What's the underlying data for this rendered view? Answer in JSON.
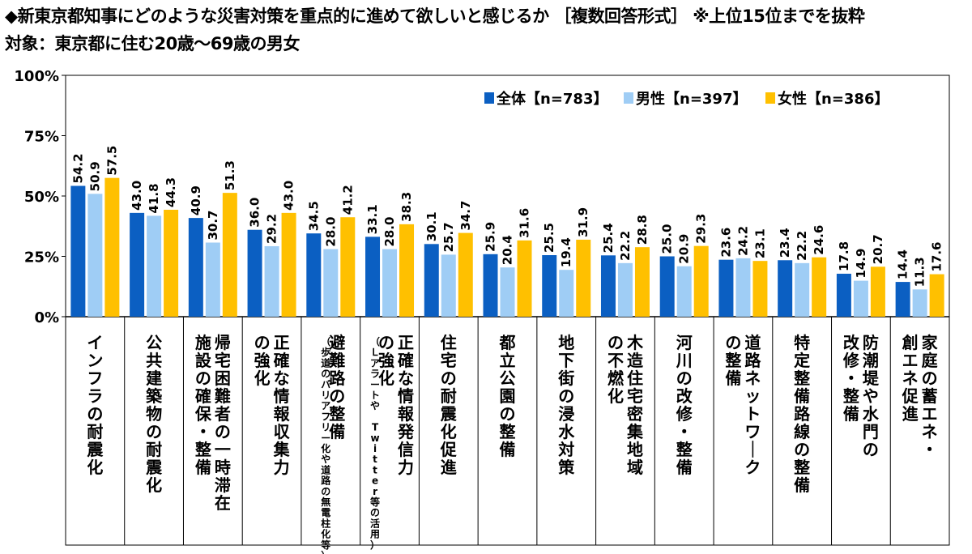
{
  "chart_data": {
    "type": "bar",
    "title": "◆新東京都知事にどのような災害対策を重点的に進めて欲しいと感じるか ［複数回答形式］ ※上位15位までを抜粋",
    "subtitle": "対象：東京都に住む20歳～69歳の男女",
    "ylim": [
      0,
      100
    ],
    "y_ticks": [
      "100%",
      "75%",
      "50%",
      "25%",
      "0%"
    ],
    "legend_position": "top-right",
    "categories": [
      "インフラの耐震化",
      "公共建築物の耐震化",
      "帰宅困難者の一時滞在施設の確保・整備",
      "正確な情報収集力の強化",
      "避難路の整備",
      "正確な情報発信力の強化",
      "住宅の耐震化促進",
      "都立公園の整備",
      "地下街の浸水対策",
      "木造住宅密集地域の不燃化",
      "河川の改修・整備",
      "道路ネットワークの整備",
      "特定整備路線の整備",
      "防潮堤や水門の改修・整備",
      "家庭の蓄エネ・創エネ促進"
    ],
    "category_columns": [
      [
        "インフラの耐震化"
      ],
      [
        "公共建築物の耐震化"
      ],
      [
        "帰宅困難者の一時滞在",
        "施設の確保・整備"
      ],
      [
        "正確な情報収集力",
        "の強化"
      ],
      [
        "避難路の整備"
      ],
      [
        "正確な情報発信力",
        "の強化"
      ],
      [
        "住宅の耐震化促進"
      ],
      [
        "都立公園の整備"
      ],
      [
        "地下街の浸水対策"
      ],
      [
        "木造住宅密集地域",
        "の不燃化"
      ],
      [
        "河川の改修・整備"
      ],
      [
        "道路ネットワーク",
        "の整備"
      ],
      [
        "特定整備路線の整備"
      ],
      [
        "防潮堤や水門の",
        "改修・整備"
      ],
      [
        "家庭の蓄エネ・",
        "創エネ促進"
      ]
    ],
    "category_notes": [
      "",
      "",
      "",
      "",
      "（歩道のバリアフリー化や道路の無電柱化等）",
      "（Ｌアラートや Twitter等の活用）",
      "",
      "",
      "",
      "",
      "",
      "",
      "",
      "",
      ""
    ],
    "series": [
      {
        "name": "全体【n=783】",
        "color": "#0b5fc2",
        "values": [
          54.2,
          43.0,
          40.9,
          36.0,
          34.5,
          33.1,
          30.1,
          25.9,
          25.5,
          25.4,
          25.0,
          23.6,
          23.4,
          17.8,
          14.4
        ],
        "labels": [
          "54.2",
          "43.0",
          "40.9",
          "36.0",
          "34.5",
          "33.1",
          "30.1",
          "25.9",
          "25.5",
          "25.4",
          "25.0",
          "23.6",
          "23.4",
          "17.8",
          "14.4"
        ]
      },
      {
        "name": "男性【n=397】",
        "color": "#9fcdf5",
        "values": [
          50.9,
          41.8,
          30.7,
          29.2,
          28.0,
          28.0,
          25.7,
          20.4,
          19.4,
          22.2,
          20.9,
          24.2,
          22.2,
          14.9,
          11.3
        ],
        "labels": [
          "50.9",
          "41.8",
          "30.7",
          "29.2",
          "28.0",
          "28.0",
          "25.7",
          "20.4",
          "19.4",
          "22.2",
          "20.9",
          "24.2",
          "22.2",
          "14.9",
          "11.3"
        ]
      },
      {
        "name": "女性【n=386】",
        "color": "#ffc000",
        "values": [
          57.5,
          44.3,
          51.3,
          43.0,
          41.2,
          38.3,
          34.7,
          31.6,
          31.9,
          28.8,
          29.3,
          23.1,
          24.6,
          20.7,
          17.6
        ],
        "labels": [
          "57.5",
          "44.3",
          "51.3",
          "43.0",
          "41.2",
          "38.3",
          "34.7",
          "31.6",
          "31.9",
          "28.8",
          "29.3",
          "23.1",
          "24.6",
          "20.7",
          "17.6"
        ]
      }
    ]
  }
}
